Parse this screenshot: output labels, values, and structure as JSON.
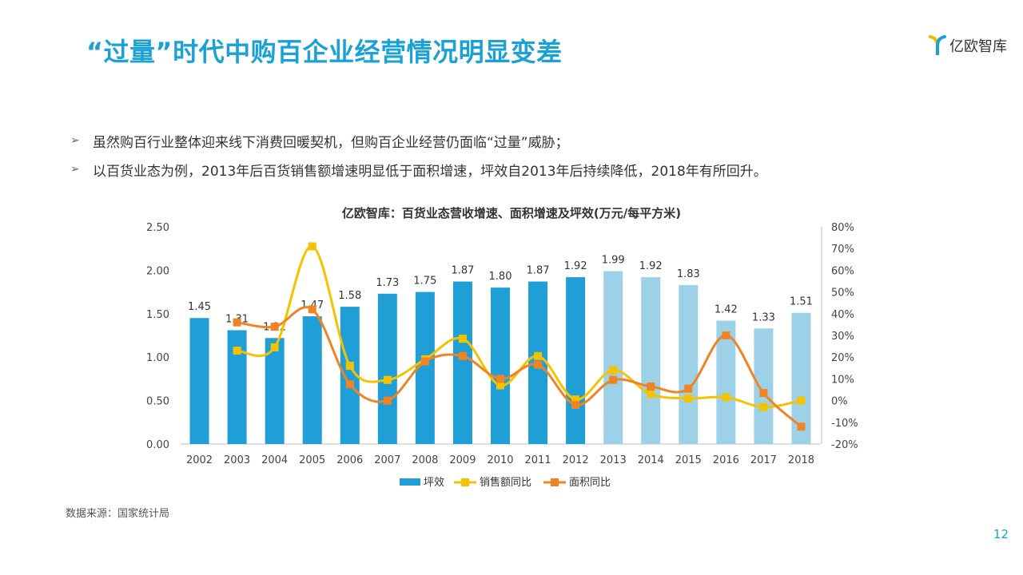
{
  "header": {
    "title": "“过量”时代中购百企业经营情况明显变差",
    "logo_text": "亿欧智库"
  },
  "bullets": [
    "虽然购百行业整体迎来线下消费回暖契机，但购百企业经营仍面临“过量”威胁；",
    "以百货业态为例，2013年后百货销售额增速明显低于面积增速，坪效自2013年后持续降低，2018年有所回升。"
  ],
  "source": "数据来源：国家统计局",
  "page_number": "12",
  "colors": {
    "bar_dark": "#1f9fd6",
    "bar_light": "#9dd1e8",
    "sales": "#f5c200",
    "area": "#f08323",
    "title": "#1aa1d6"
  },
  "chart_data": {
    "type": "bar+line",
    "title": "亿欧智库：百货业态营收增速、面积增速及坪效(万元/每平方米)",
    "categories": [
      "2002",
      "2003",
      "2004",
      "2005",
      "2006",
      "2007",
      "2008",
      "2009",
      "2010",
      "2011",
      "2012",
      "2013",
      "2014",
      "2015",
      "2016",
      "2017",
      "2018"
    ],
    "left_axis": {
      "min": 0,
      "max": 2.5,
      "ticks": [
        "0.00",
        "0.50",
        "1.00",
        "1.50",
        "2.00",
        "2.50"
      ]
    },
    "right_axis": {
      "min": -20,
      "max": 80,
      "ticks": [
        "-20%",
        "-10%",
        "0%",
        "10%",
        "20%",
        "30%",
        "40%",
        "50%",
        "60%",
        "70%",
        "80%"
      ]
    },
    "bars": {
      "name": "坪效",
      "values": [
        1.45,
        1.31,
        1.22,
        1.47,
        1.58,
        1.73,
        1.75,
        1.87,
        1.8,
        1.87,
        1.92,
        1.99,
        1.92,
        1.83,
        1.42,
        1.33,
        1.51
      ],
      "labels": [
        "1.45",
        "1.31",
        "1.22",
        "1.47",
        "1.58",
        "1.73",
        "1.75",
        "1.87",
        "1.80",
        "1.87",
        "1.92",
        "1.99",
        "1.92",
        "1.83",
        "1.42",
        "1.33",
        "1.51"
      ],
      "light_from_index": 11
    },
    "series": [
      {
        "name": "销售额同比",
        "values": [
          null,
          23,
          24.5,
          71,
          16,
          9.5,
          19,
          28.5,
          7,
          20.5,
          0.5,
          14,
          3,
          1,
          1.5,
          -3,
          0
        ]
      },
      {
        "name": "面积同比",
        "values": [
          null,
          36,
          34,
          42,
          7.5,
          0,
          18,
          20.5,
          10,
          16.5,
          -2,
          9.5,
          6.5,
          5.5,
          30,
          3.5,
          -12
        ]
      }
    ],
    "grid": false,
    "legend": "bottom"
  }
}
